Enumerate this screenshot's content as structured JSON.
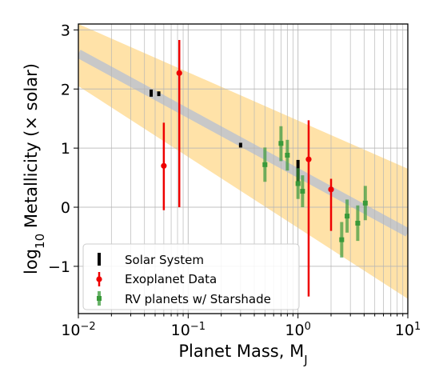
{
  "chart_data": {
    "type": "scatter",
    "title": "",
    "xlabel": "Planet Mass, M",
    "xlabel_sub": "J",
    "ylabel_prefix": "log",
    "ylabel_sub": "10",
    "ylabel_rest": " Metallicity (× solar)",
    "xscale": "log",
    "xlim": [
      0.01,
      10
    ],
    "ylim": [
      -1.8,
      3.1
    ],
    "x_ticks": [
      {
        "value": 0.01,
        "base": "10",
        "exp": "−2"
      },
      {
        "value": 0.1,
        "base": "10",
        "exp": "−1"
      },
      {
        "value": 1,
        "base": "10",
        "exp": "0"
      },
      {
        "value": 10,
        "base": "10",
        "exp": "1"
      }
    ],
    "y_ticks": [
      {
        "value": -1,
        "label": "−1"
      },
      {
        "value": 0,
        "label": "0"
      },
      {
        "value": 1,
        "label": "1"
      },
      {
        "value": 2,
        "label": "2"
      },
      {
        "value": 3,
        "label": "3"
      }
    ],
    "grid": true,
    "legend_position": "lower-left",
    "fit": {
      "line_at_x_0_01": 2.6,
      "line_at_x_10": -0.43,
      "band_upper_at_x_0_01": 3.1,
      "band_upper_at_x_10": 0.65,
      "band_lower_at_x_0_01": 2.05,
      "band_lower_at_x_10": -1.55,
      "line_color": "#c8c8c8",
      "band_color": "#ffe2a8"
    },
    "series": [
      {
        "name": "Solar System",
        "color": "#000000",
        "marker": "bar",
        "points": [
          {
            "x": 0.046,
            "y": 1.93,
            "ylo": 1.87,
            "yhi": 1.99
          },
          {
            "x": 0.054,
            "y": 1.92,
            "ylo": 1.88,
            "yhi": 1.96
          },
          {
            "x": 0.3,
            "y": 1.05,
            "ylo": 1.01,
            "yhi": 1.09
          },
          {
            "x": 1.0,
            "y": 0.6,
            "ylo": 0.4,
            "yhi": 0.8
          }
        ]
      },
      {
        "name": "Exoplanet Data",
        "color": "#ee0000",
        "marker": "circle",
        "points": [
          {
            "x": 0.06,
            "y": 0.7,
            "ylo": -0.05,
            "yhi": 1.43
          },
          {
            "x": 0.083,
            "y": 2.27,
            "ylo": 0.0,
            "yhi": 2.83
          },
          {
            "x": 1.25,
            "y": 0.81,
            "ylo": -1.51,
            "yhi": 1.47
          },
          {
            "x": 2.0,
            "y": 0.3,
            "ylo": -0.4,
            "yhi": 0.48
          }
        ]
      },
      {
        "name": "RV planets w/ Starshade",
        "color": "#3a9a3a",
        "marker": "square",
        "points": [
          {
            "x": 0.5,
            "y": 0.72,
            "ylo": 0.43,
            "yhi": 1.01
          },
          {
            "x": 0.7,
            "y": 1.08,
            "ylo": 0.78,
            "yhi": 1.37
          },
          {
            "x": 0.8,
            "y": 0.88,
            "ylo": 0.62,
            "yhi": 1.14
          },
          {
            "x": 1.0,
            "y": 0.4,
            "ylo": 0.14,
            "yhi": 0.66
          },
          {
            "x": 1.1,
            "y": 0.27,
            "ylo": 0.0,
            "yhi": 0.54
          },
          {
            "x": 2.5,
            "y": -0.55,
            "ylo": -0.85,
            "yhi": -0.25
          },
          {
            "x": 2.8,
            "y": -0.15,
            "ylo": -0.43,
            "yhi": 0.13
          },
          {
            "x": 3.5,
            "y": -0.27,
            "ylo": -0.57,
            "yhi": 0.03
          },
          {
            "x": 4.1,
            "y": 0.07,
            "ylo": -0.22,
            "yhi": 0.36
          }
        ]
      }
    ]
  }
}
